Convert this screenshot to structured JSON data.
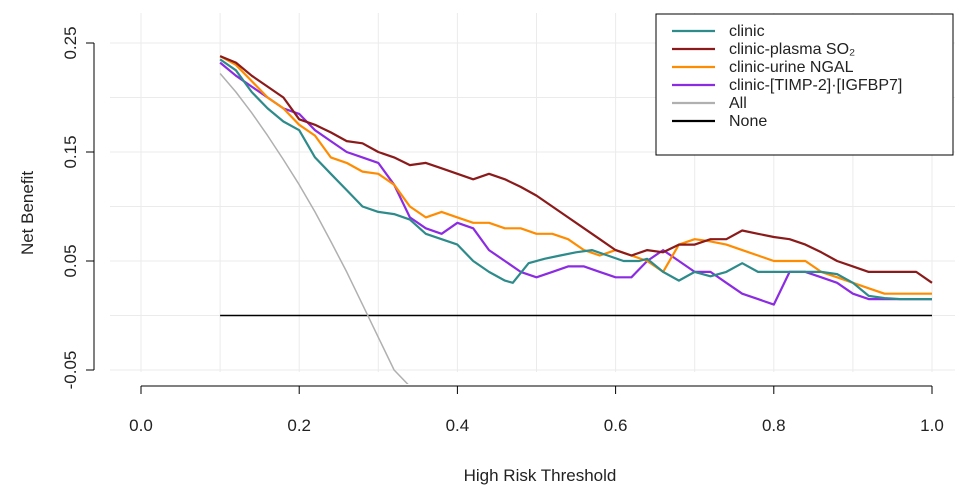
{
  "chart_data": {
    "type": "line",
    "title": "",
    "xlabel": "High Risk Threshold",
    "ylabel": "Net Benefit",
    "xlim": [
      0.0,
      1.0
    ],
    "ylim": [
      -0.05,
      0.25
    ],
    "xticks": [
      "0.0",
      "0.2",
      "0.4",
      "0.6",
      "0.8",
      "1.0"
    ],
    "yticks": [
      "-0.05",
      "0.05",
      "0.15",
      "0.25"
    ],
    "grid": true,
    "legend_position": "top-right",
    "series": [
      {
        "name": "clinic",
        "color": "#2e8b8b",
        "points": [
          [
            0.1,
            0.235
          ],
          [
            0.12,
            0.225
          ],
          [
            0.14,
            0.205
          ],
          [
            0.16,
            0.19
          ],
          [
            0.18,
            0.178
          ],
          [
            0.2,
            0.17
          ],
          [
            0.22,
            0.145
          ],
          [
            0.24,
            0.13
          ],
          [
            0.26,
            0.115
          ],
          [
            0.28,
            0.1
          ],
          [
            0.3,
            0.095
          ],
          [
            0.32,
            0.093
          ],
          [
            0.34,
            0.088
          ],
          [
            0.36,
            0.075
          ],
          [
            0.38,
            0.07
          ],
          [
            0.4,
            0.065
          ],
          [
            0.42,
            0.05
          ],
          [
            0.44,
            0.04
          ],
          [
            0.46,
            0.032
          ],
          [
            0.47,
            0.03
          ],
          [
            0.49,
            0.048
          ],
          [
            0.51,
            0.052
          ],
          [
            0.53,
            0.055
          ],
          [
            0.55,
            0.058
          ],
          [
            0.57,
            0.06
          ],
          [
            0.59,
            0.055
          ],
          [
            0.61,
            0.05
          ],
          [
            0.63,
            0.05
          ],
          [
            0.64,
            0.052
          ],
          [
            0.66,
            0.04
          ],
          [
            0.68,
            0.032
          ],
          [
            0.7,
            0.04
          ],
          [
            0.72,
            0.036
          ],
          [
            0.74,
            0.04
          ],
          [
            0.76,
            0.048
          ],
          [
            0.78,
            0.04
          ],
          [
            0.8,
            0.04
          ],
          [
            0.82,
            0.04
          ],
          [
            0.84,
            0.04
          ],
          [
            0.86,
            0.04
          ],
          [
            0.88,
            0.038
          ],
          [
            0.9,
            0.03
          ],
          [
            0.92,
            0.018
          ],
          [
            0.94,
            0.016
          ],
          [
            0.96,
            0.015
          ],
          [
            0.98,
            0.015
          ],
          [
            1.0,
            0.015
          ]
        ]
      },
      {
        "name": "clinic-plasma SO₂",
        "color": "#8b1a1a",
        "points": [
          [
            0.1,
            0.238
          ],
          [
            0.12,
            0.232
          ],
          [
            0.14,
            0.22
          ],
          [
            0.16,
            0.21
          ],
          [
            0.18,
            0.2
          ],
          [
            0.2,
            0.18
          ],
          [
            0.22,
            0.175
          ],
          [
            0.24,
            0.168
          ],
          [
            0.26,
            0.16
          ],
          [
            0.28,
            0.158
          ],
          [
            0.3,
            0.15
          ],
          [
            0.32,
            0.145
          ],
          [
            0.34,
            0.138
          ],
          [
            0.36,
            0.14
          ],
          [
            0.38,
            0.135
          ],
          [
            0.4,
            0.13
          ],
          [
            0.42,
            0.125
          ],
          [
            0.44,
            0.13
          ],
          [
            0.46,
            0.125
          ],
          [
            0.48,
            0.118
          ],
          [
            0.5,
            0.11
          ],
          [
            0.52,
            0.1
          ],
          [
            0.54,
            0.09
          ],
          [
            0.56,
            0.08
          ],
          [
            0.58,
            0.07
          ],
          [
            0.6,
            0.06
          ],
          [
            0.62,
            0.055
          ],
          [
            0.64,
            0.06
          ],
          [
            0.66,
            0.058
          ],
          [
            0.68,
            0.065
          ],
          [
            0.7,
            0.065
          ],
          [
            0.72,
            0.07
          ],
          [
            0.74,
            0.07
          ],
          [
            0.76,
            0.078
          ],
          [
            0.78,
            0.075
          ],
          [
            0.8,
            0.072
          ],
          [
            0.82,
            0.07
          ],
          [
            0.84,
            0.065
          ],
          [
            0.86,
            0.058
          ],
          [
            0.88,
            0.05
          ],
          [
            0.9,
            0.045
          ],
          [
            0.92,
            0.04
          ],
          [
            0.94,
            0.04
          ],
          [
            0.96,
            0.04
          ],
          [
            0.98,
            0.04
          ],
          [
            1.0,
            0.03
          ]
        ]
      },
      {
        "name": "clinic-urine NGAL",
        "color": "#ff8c00",
        "points": [
          [
            0.1,
            0.238
          ],
          [
            0.12,
            0.23
          ],
          [
            0.14,
            0.215
          ],
          [
            0.16,
            0.2
          ],
          [
            0.18,
            0.19
          ],
          [
            0.2,
            0.175
          ],
          [
            0.22,
            0.165
          ],
          [
            0.24,
            0.145
          ],
          [
            0.26,
            0.14
          ],
          [
            0.28,
            0.132
          ],
          [
            0.3,
            0.13
          ],
          [
            0.32,
            0.12
          ],
          [
            0.34,
            0.1
          ],
          [
            0.36,
            0.09
          ],
          [
            0.38,
            0.095
          ],
          [
            0.4,
            0.09
          ],
          [
            0.42,
            0.085
          ],
          [
            0.44,
            0.085
          ],
          [
            0.46,
            0.08
          ],
          [
            0.48,
            0.08
          ],
          [
            0.5,
            0.075
          ],
          [
            0.52,
            0.075
          ],
          [
            0.54,
            0.07
          ],
          [
            0.56,
            0.06
          ],
          [
            0.58,
            0.055
          ],
          [
            0.6,
            0.06
          ],
          [
            0.62,
            0.055
          ],
          [
            0.64,
            0.05
          ],
          [
            0.66,
            0.04
          ],
          [
            0.68,
            0.065
          ],
          [
            0.7,
            0.07
          ],
          [
            0.72,
            0.068
          ],
          [
            0.74,
            0.065
          ],
          [
            0.76,
            0.06
          ],
          [
            0.78,
            0.055
          ],
          [
            0.8,
            0.05
          ],
          [
            0.82,
            0.05
          ],
          [
            0.84,
            0.05
          ],
          [
            0.86,
            0.04
          ],
          [
            0.88,
            0.035
          ],
          [
            0.9,
            0.03
          ],
          [
            0.92,
            0.025
          ],
          [
            0.94,
            0.02
          ],
          [
            0.96,
            0.02
          ],
          [
            0.98,
            0.02
          ],
          [
            1.0,
            0.02
          ]
        ]
      },
      {
        "name": "clinic-[TIMP-2]·[IGFBP7]",
        "color": "#8b2be2",
        "points": [
          [
            0.1,
            0.232
          ],
          [
            0.12,
            0.22
          ],
          [
            0.14,
            0.21
          ],
          [
            0.16,
            0.2
          ],
          [
            0.18,
            0.19
          ],
          [
            0.2,
            0.185
          ],
          [
            0.22,
            0.17
          ],
          [
            0.24,
            0.16
          ],
          [
            0.26,
            0.15
          ],
          [
            0.28,
            0.145
          ],
          [
            0.3,
            0.14
          ],
          [
            0.32,
            0.12
          ],
          [
            0.34,
            0.09
          ],
          [
            0.36,
            0.08
          ],
          [
            0.38,
            0.075
          ],
          [
            0.4,
            0.085
          ],
          [
            0.42,
            0.08
          ],
          [
            0.44,
            0.06
          ],
          [
            0.46,
            0.05
          ],
          [
            0.48,
            0.04
          ],
          [
            0.5,
            0.035
          ],
          [
            0.52,
            0.04
          ],
          [
            0.54,
            0.045
          ],
          [
            0.56,
            0.045
          ],
          [
            0.58,
            0.04
          ],
          [
            0.6,
            0.035
          ],
          [
            0.62,
            0.035
          ],
          [
            0.64,
            0.05
          ],
          [
            0.66,
            0.06
          ],
          [
            0.68,
            0.05
          ],
          [
            0.7,
            0.04
          ],
          [
            0.72,
            0.04
          ],
          [
            0.74,
            0.03
          ],
          [
            0.76,
            0.02
          ],
          [
            0.78,
            0.015
          ],
          [
            0.8,
            0.01
          ],
          [
            0.82,
            0.04
          ],
          [
            0.84,
            0.04
          ],
          [
            0.86,
            0.035
          ],
          [
            0.88,
            0.03
          ],
          [
            0.9,
            0.02
          ],
          [
            0.92,
            0.015
          ],
          [
            0.94,
            0.015
          ],
          [
            0.96,
            0.015
          ],
          [
            0.98,
            0.015
          ],
          [
            1.0,
            0.015
          ]
        ]
      },
      {
        "name": "All",
        "color": "#b0b0b0",
        "points": [
          [
            0.1,
            0.222
          ],
          [
            0.12,
            0.205
          ],
          [
            0.14,
            0.186
          ],
          [
            0.16,
            0.165
          ],
          [
            0.18,
            0.143
          ],
          [
            0.2,
            0.12
          ],
          [
            0.22,
            0.095
          ],
          [
            0.24,
            0.068
          ],
          [
            0.26,
            0.04
          ],
          [
            0.28,
            0.01
          ],
          [
            0.3,
            -0.02
          ],
          [
            0.32,
            -0.05
          ],
          [
            0.34,
            -0.065
          ]
        ]
      },
      {
        "name": "None",
        "color": "#000000",
        "points": [
          [
            0.1,
            0.0
          ],
          [
            1.0,
            0.0
          ]
        ]
      }
    ]
  }
}
